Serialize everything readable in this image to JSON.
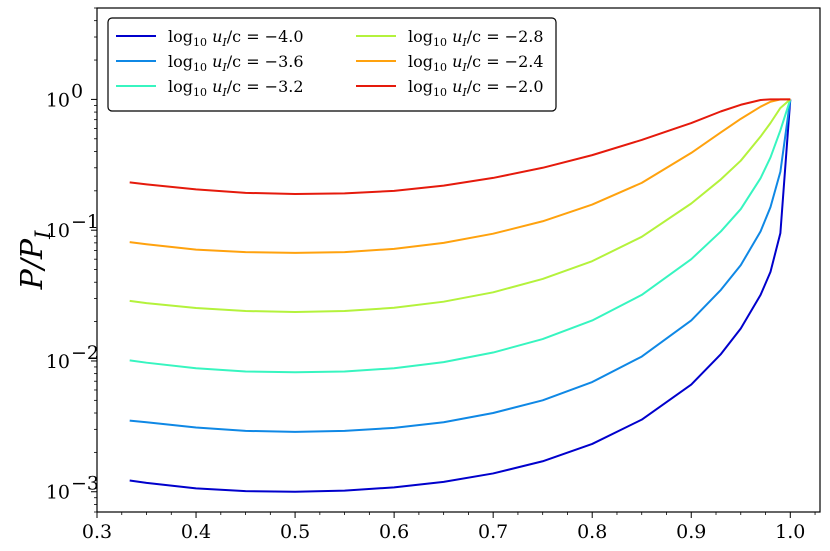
{
  "chart_data": {
    "type": "line",
    "xlabel": "",
    "ylabel": "P/P_I",
    "ylabel_parts": {
      "main": "P/P",
      "sub": "I"
    },
    "xlim": [
      0.3,
      1.03
    ],
    "ylim": [
      0.0007,
      5.0
    ],
    "yscale": "log",
    "x_ticks": [
      0.3,
      0.4,
      0.5,
      0.6,
      0.7,
      0.8,
      0.9,
      1.0
    ],
    "x_tick_labels": [
      "0.3",
      "0.4",
      "0.5",
      "0.6",
      "0.7",
      "0.8",
      "0.9",
      "1.0"
    ],
    "y_ticks": [
      0.001,
      0.01,
      0.1,
      1.0
    ],
    "y_tick_labels": [
      {
        "base": "10",
        "exp": "−3"
      },
      {
        "base": "10",
        "exp": "−2"
      },
      {
        "base": "10",
        "exp": "−1"
      },
      {
        "base": "10",
        "exp": "0"
      }
    ],
    "grid": false,
    "legend_position": "top-left",
    "legend_columns": 2,
    "x": [
      0.333,
      0.35,
      0.4,
      0.45,
      0.5,
      0.55,
      0.6,
      0.65,
      0.7,
      0.75,
      0.8,
      0.85,
      0.9,
      0.93,
      0.95,
      0.97,
      0.98,
      0.99,
      1.0
    ],
    "series": [
      {
        "name": "log10 uI/c = −4.0",
        "legend_parts": {
          "log": "log",
          "logsub": "10",
          "var": "u",
          "varsub": "I",
          "rest": "/c = −4.0"
        },
        "color": "#0000cc",
        "values": [
          0.00122,
          0.00117,
          0.00106,
          0.00101,
          0.001,
          0.00102,
          0.00108,
          0.00119,
          0.00138,
          0.00171,
          0.00232,
          0.00356,
          0.0066,
          0.0113,
          0.0177,
          0.032,
          0.048,
          0.095,
          1.0
        ]
      },
      {
        "name": "log10 uI/c = −3.6",
        "legend_parts": {
          "log": "log",
          "logsub": "10",
          "var": "u",
          "varsub": "I",
          "rest": "/c = −3.6"
        },
        "color": "#0f88e5",
        "values": [
          0.0035,
          0.0034,
          0.0031,
          0.00292,
          0.00287,
          0.00292,
          0.00308,
          0.0034,
          0.004,
          0.005,
          0.0069,
          0.0108,
          0.0204,
          0.035,
          0.054,
          0.098,
          0.15,
          0.28,
          1.0
        ]
      },
      {
        "name": "log10 uI/c = −3.2",
        "legend_parts": {
          "log": "log",
          "logsub": "10",
          "var": "u",
          "varsub": "I",
          "rest": "/c = −3.2"
        },
        "color": "#37f5c0",
        "values": [
          0.0101,
          0.0097,
          0.0088,
          0.0083,
          0.0082,
          0.0083,
          0.0088,
          0.0098,
          0.0116,
          0.0147,
          0.0204,
          0.032,
          0.06,
          0.098,
          0.145,
          0.25,
          0.36,
          0.58,
          1.0
        ]
      },
      {
        "name": "log10 uI/c = −2.8",
        "legend_parts": {
          "log": "log",
          "logsub": "10",
          "var": "u",
          "varsub": "I",
          "rest": "/c = −2.8"
        },
        "color": "#b4f23c",
        "values": [
          0.0288,
          0.0277,
          0.0254,
          0.0241,
          0.0237,
          0.0241,
          0.0255,
          0.0284,
          0.0335,
          0.0424,
          0.058,
          0.089,
          0.16,
          0.245,
          0.34,
          0.52,
          0.66,
          0.86,
          1.0
        ]
      },
      {
        "name": "log10 uI/c = −2.4",
        "legend_parts": {
          "log": "log",
          "logsub": "10",
          "var": "u",
          "varsub": "I",
          "rest": "/c = −2.4"
        },
        "color": "#ffa20e",
        "values": [
          0.081,
          0.078,
          0.071,
          0.068,
          0.067,
          0.068,
          0.072,
          0.08,
          0.094,
          0.117,
          0.157,
          0.23,
          0.39,
          0.56,
          0.71,
          0.88,
          0.96,
          1.0,
          1.0
        ]
      },
      {
        "name": "log10 uI/c = −2.0",
        "legend_parts": {
          "log": "log",
          "logsub": "10",
          "var": "u",
          "varsub": "I",
          "rest": "/c = −2.0"
        },
        "color": "#e51a0c",
        "values": [
          0.232,
          0.224,
          0.205,
          0.193,
          0.189,
          0.191,
          0.2,
          0.219,
          0.251,
          0.3,
          0.375,
          0.49,
          0.66,
          0.81,
          0.91,
          0.99,
          1.0,
          1.0,
          1.0
        ]
      }
    ]
  }
}
